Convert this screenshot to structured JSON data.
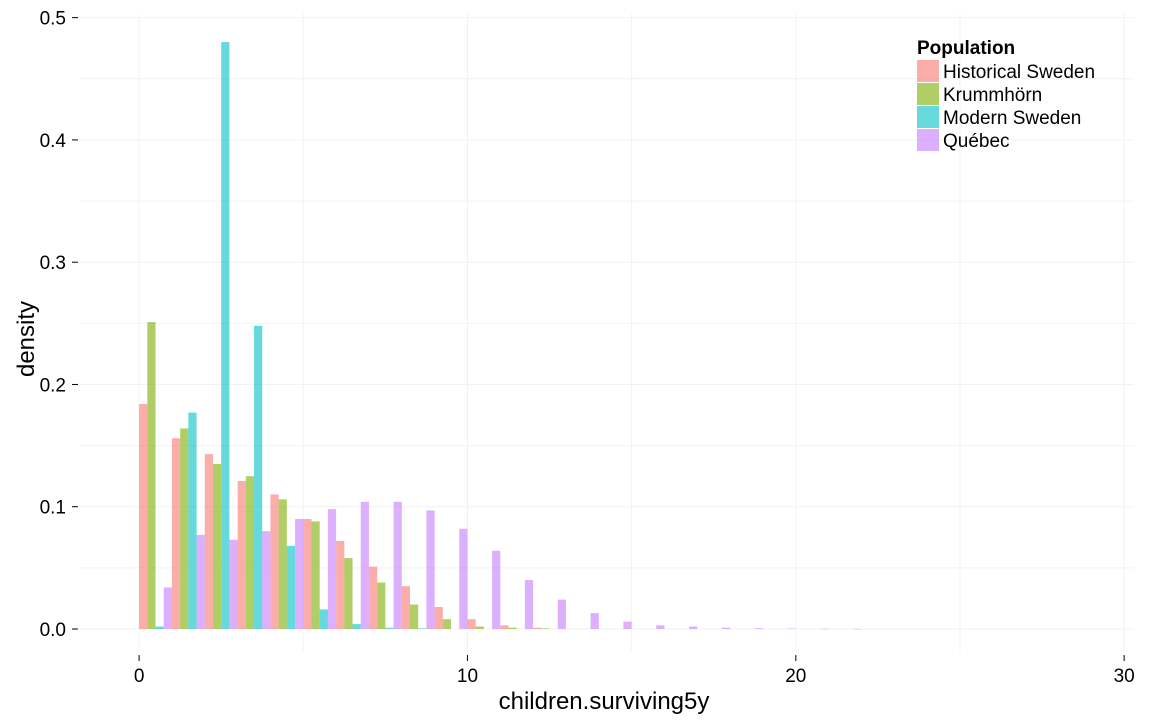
{
  "chart_data": {
    "type": "bar",
    "xlabel": "children.surviving5y",
    "ylabel": "density",
    "xlim": [
      -1.8,
      30.3
    ],
    "ylim": [
      -0.018,
      0.503
    ],
    "xticks": [
      0,
      10,
      20,
      30
    ],
    "yticks": [
      0.0,
      0.1,
      0.2,
      0.3,
      0.4,
      0.5
    ],
    "ytick_labels": [
      "0.0",
      "0.1",
      "0.2",
      "0.3",
      "0.4",
      "0.5"
    ],
    "grid": true,
    "legend_position": "top-right",
    "legend_title": "Population",
    "bin_width": 1,
    "x": [
      0,
      1,
      2,
      3,
      4,
      5,
      6,
      7,
      8,
      9,
      10,
      11,
      12,
      13,
      14,
      15,
      16,
      17,
      18,
      19,
      20,
      21
    ],
    "series": [
      {
        "name": "Historical Sweden",
        "color": "#F8766D",
        "values": [
          0.184,
          0.156,
          0.143,
          0.121,
          0.11,
          0.09,
          0.072,
          0.051,
          0.035,
          0.018,
          0.008,
          0.003,
          0.001,
          0.0,
          0.0,
          0.0,
          0.0,
          0.0,
          0.0,
          0.0,
          0.0,
          0.0
        ]
      },
      {
        "name": "Krummhörn",
        "color": "#7CAE00",
        "values": [
          0.251,
          0.164,
          0.135,
          0.125,
          0.106,
          0.088,
          0.058,
          0.038,
          0.02,
          0.008,
          0.002,
          0.001,
          0.0005,
          0.0,
          0.0,
          0.0,
          0.0,
          0.0,
          0.0,
          0.0,
          0.0,
          0.0
        ]
      },
      {
        "name": "Modern Sweden",
        "color": "#00BFC4",
        "values": [
          0.002,
          0.177,
          0.48,
          0.248,
          0.068,
          0.016,
          0.004,
          0.001,
          0.0005,
          0.0,
          0.0,
          0.0,
          0.0,
          0.0,
          0.0,
          0.0,
          0.0,
          0.0,
          0.0,
          0.0,
          0.0,
          0.0
        ]
      },
      {
        "name": "Québec",
        "color": "#C77CFF",
        "values": [
          0.034,
          0.077,
          0.073,
          0.08,
          0.09,
          0.098,
          0.104,
          0.104,
          0.097,
          0.082,
          0.064,
          0.04,
          0.024,
          0.013,
          0.006,
          0.003,
          0.002,
          0.001,
          0.0007,
          0.0004,
          0.0002,
          0.0001
        ]
      }
    ]
  }
}
